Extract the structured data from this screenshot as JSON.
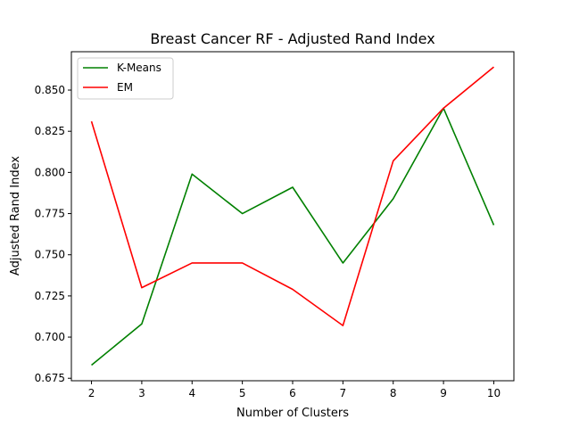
{
  "chart_data": {
    "type": "line",
    "title": "Breast Cancer RF - Adjusted Rand Index",
    "xlabel": "Number of Clusters",
    "ylabel": "Adjusted Rand Index",
    "x": [
      2,
      3,
      4,
      5,
      6,
      7,
      8,
      9,
      10
    ],
    "xlim": [
      1.6,
      10.4
    ],
    "ylim": [
      0.674,
      0.673
    ],
    "xticks": [
      "2",
      "3",
      "4",
      "5",
      "6",
      "7",
      "8",
      "9",
      "10"
    ],
    "yticks": [
      "0.675",
      "0.700",
      "0.725",
      "0.750",
      "0.775",
      "0.800",
      "0.825",
      "0.850"
    ],
    "grid": false,
    "legend_position": "upper-left",
    "series": [
      {
        "name": "K-Means",
        "color": "#008000",
        "values": [
          0.683,
          0.708,
          0.799,
          0.775,
          0.791,
          0.745,
          0.784,
          0.839,
          0.768
        ]
      },
      {
        "name": "EM",
        "color": "#ff0000",
        "values": [
          0.831,
          0.73,
          0.745,
          0.745,
          0.729,
          0.707,
          0.807,
          0.839,
          0.864
        ]
      }
    ]
  }
}
